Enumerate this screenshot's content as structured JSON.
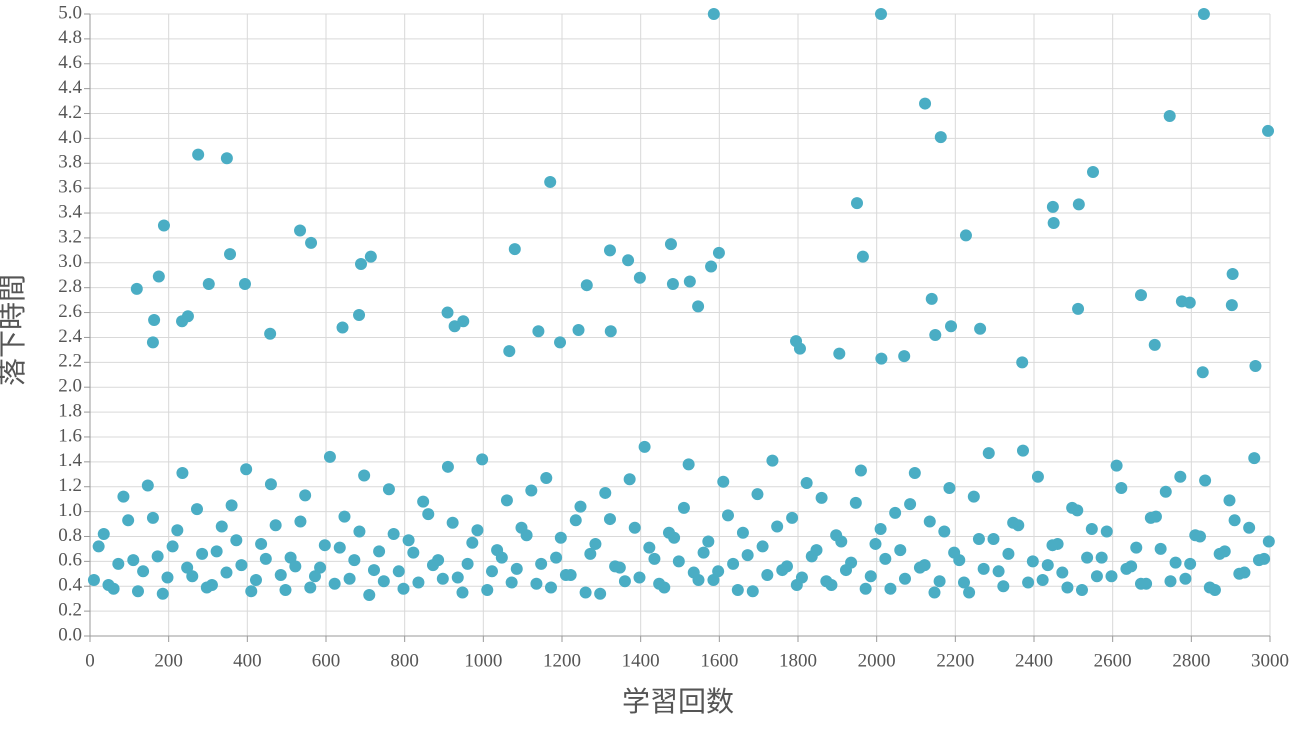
{
  "chart_data": {
    "type": "scatter",
    "x_label": "学習回数",
    "y_label": "落下時間",
    "color": "#4aadc4",
    "grid": true,
    "xlim": [
      0,
      3000
    ],
    "xticks": [
      0,
      200,
      400,
      600,
      800,
      1000,
      1200,
      1400,
      1600,
      1800,
      2000,
      2200,
      2400,
      2600,
      2800,
      3000
    ],
    "ylim": [
      0,
      5
    ],
    "yticks": [
      {
        "value": 0,
        "label": "0.0"
      },
      0.2,
      0.4,
      0.6,
      0.8,
      {
        "value": 1,
        "label": "1.0"
      },
      1.2,
      1.4,
      1.6,
      1.8,
      {
        "value": 2,
        "label": "2.0"
      },
      2.2,
      2.4,
      2.6,
      2.8,
      {
        "value": 3,
        "label": "3.0"
      },
      3.2,
      3.4,
      3.6,
      3.8,
      {
        "value": 4,
        "label": "4.0"
      },
      4.2,
      4.4,
      4.6,
      4.8,
      {
        "value": 5,
        "label": "5.0"
      }
    ],
    "x": [
      1586,
      2011,
      2832,
      2995,
      275,
      348,
      188,
      356,
      175,
      119,
      302,
      394,
      534,
      562,
      689,
      714,
      1080,
      1170,
      1322,
      1368,
      1398,
      1263,
      1477,
      1482,
      1525,
      1546,
      1579,
      1599,
      1950,
      1965,
      2123,
      2163,
      2140,
      2227,
      2448,
      2450,
      2514,
      2550,
      2512,
      2672,
      2707,
      2745,
      2776,
      2796,
      2905,
      2903,
      163,
      234,
      249,
      160,
      458,
      642,
      684,
      909,
      927,
      949,
      1066,
      1140,
      1242,
      1324,
      2149,
      2189,
      2263,
      2963,
      2829,
      1195,
      1795,
      1805,
      2012,
      1905,
      2070,
      2370,
      10,
      35,
      60,
      85,
      110,
      135,
      160,
      185,
      210,
      235,
      260,
      285,
      310,
      335,
      360,
      385,
      410,
      435,
      460,
      485,
      510,
      535,
      560,
      585,
      610,
      635,
      660,
      685,
      710,
      735,
      760,
      785,
      810,
      835,
      860,
      885,
      910,
      935,
      960,
      985,
      1010,
      1035,
      1060,
      1085,
      1110,
      1135,
      1160,
      1185,
      1210,
      1235,
      1260,
      1285,
      1310,
      1335,
      1360,
      1385,
      1410,
      1435,
      1460,
      1485,
      1510,
      1535,
      1560,
      1585,
      1610,
      1635,
      1660,
      1685,
      1710,
      1735,
      1760,
      1785,
      1810,
      1835,
      1860,
      1885,
      1910,
      1935,
      1960,
      1985,
      2010,
      2035,
      2060,
      2085,
      2110,
      2135,
      2160,
      2185,
      2210,
      2235,
      2260,
      2285,
      2310,
      2335,
      2360,
      2385,
      2410,
      2435,
      2460,
      2485,
      2510,
      2535,
      2560,
      2585,
      2610,
      2635,
      2660,
      2685,
      2710,
      2735,
      2760,
      2785,
      2810,
      2835,
      2860,
      2885,
      2910,
      2935,
      2960,
      2985,
      22,
      47,
      72,
      97,
      122,
      147,
      172,
      197,
      222,
      247,
      272,
      297,
      322,
      347,
      372,
      397,
      422,
      447,
      472,
      497,
      522,
      547,
      572,
      597,
      622,
      647,
      672,
      697,
      722,
      747,
      772,
      797,
      822,
      847,
      872,
      897,
      922,
      947,
      972,
      997,
      1022,
      1047,
      1072,
      1097,
      1122,
      1147,
      1172,
      1197,
      1222,
      1247,
      1272,
      1297,
      1322,
      1347,
      1372,
      1397,
      1422,
      1447,
      1472,
      1497,
      1522,
      1547,
      1572,
      1597,
      1622,
      1647,
      1672,
      1697,
      1722,
      1747,
      1772,
      1797,
      1822,
      1847,
      1872,
      1897,
      1922,
      1947,
      1972,
      1997,
      2022,
      2047,
      2072,
      2097,
      2122,
      2147,
      2172,
      2197,
      2222,
      2247,
      2272,
      2297,
      2322,
      2347,
      2372,
      2397,
      2422,
      2447,
      2472,
      2497,
      2522,
      2547,
      2572,
      2597,
      2622,
      2647,
      2672,
      2697,
      2722,
      2747,
      2772,
      2797,
      2822,
      2847,
      2872,
      2897,
      2922,
      2947,
      2972,
      2997
    ],
    "values": [
      5.0,
      5.0,
      5.0,
      4.06,
      3.87,
      3.84,
      3.3,
      3.07,
      2.89,
      2.79,
      2.83,
      2.83,
      3.26,
      3.16,
      2.99,
      3.05,
      3.11,
      3.65,
      3.1,
      3.02,
      2.88,
      2.82,
      3.15,
      2.83,
      2.85,
      2.65,
      2.97,
      3.08,
      3.48,
      3.05,
      4.28,
      4.01,
      2.71,
      3.22,
      3.45,
      3.32,
      3.47,
      3.73,
      2.63,
      2.74,
      2.34,
      4.18,
      2.69,
      2.68,
      2.91,
      2.66,
      2.54,
      2.53,
      2.57,
      2.36,
      2.43,
      2.48,
      2.58,
      2.6,
      2.49,
      2.53,
      2.29,
      2.45,
      2.46,
      2.45,
      2.42,
      2.49,
      2.47,
      2.17,
      2.12,
      2.36,
      2.37,
      2.31,
      2.23,
      2.27,
      2.25,
      2.2,
      0.45,
      0.82,
      0.38,
      1.12,
      0.61,
      0.52,
      0.95,
      0.34,
      0.72,
      1.31,
      0.48,
      0.66,
      0.41,
      0.88,
      1.05,
      0.57,
      0.36,
      0.74,
      1.22,
      0.49,
      0.63,
      0.92,
      0.39,
      0.55,
      1.44,
      0.71,
      0.46,
      0.84,
      0.33,
      0.68,
      1.18,
      0.52,
      0.77,
      0.43,
      0.98,
      0.61,
      1.36,
      0.47,
      0.58,
      0.85,
      0.37,
      0.69,
      1.09,
      0.54,
      0.81,
      0.42,
      1.27,
      0.63,
      0.49,
      0.93,
      0.35,
      0.74,
      1.15,
      0.56,
      0.44,
      0.87,
      1.52,
      0.62,
      0.39,
      0.79,
      1.03,
      0.51,
      0.67,
      0.45,
      1.24,
      0.58,
      0.83,
      0.36,
      0.72,
      1.41,
      0.53,
      0.95,
      0.47,
      0.64,
      1.11,
      0.41,
      0.76,
      0.59,
      1.33,
      0.48,
      0.86,
      0.38,
      0.69,
      1.06,
      0.55,
      0.92,
      0.44,
      1.19,
      0.61,
      0.35,
      0.78,
      1.47,
      0.52,
      0.66,
      0.89,
      0.43,
      1.28,
      0.57,
      0.74,
      0.39,
      1.01,
      0.63,
      0.48,
      0.84,
      1.37,
      0.54,
      0.71,
      0.42,
      0.96,
      1.16,
      0.59,
      0.46,
      0.81,
      1.25,
      0.37,
      0.68,
      0.93,
      0.51,
      1.43,
      0.62,
      0.72,
      0.41,
      0.58,
      0.93,
      0.36,
      1.21,
      0.64,
      0.47,
      0.85,
      0.55,
      1.02,
      0.39,
      0.68,
      0.51,
      0.77,
      1.34,
      0.45,
      0.62,
      0.89,
      0.37,
      0.56,
      1.13,
      0.48,
      0.73,
      0.42,
      0.96,
      0.61,
      1.29,
      0.53,
      0.44,
      0.82,
      0.38,
      0.67,
      1.08,
      0.57,
      0.46,
      0.91,
      0.35,
      0.75,
      1.42,
      0.52,
      0.63,
      0.43,
      0.87,
      1.17,
      0.58,
      0.39,
      0.79,
      0.49,
      1.04,
      0.66,
      0.34,
      0.94,
      0.55,
      1.26,
      0.47,
      0.71,
      0.42,
      0.83,
      0.6,
      1.38,
      0.45,
      0.76,
      0.52,
      0.97,
      0.37,
      0.65,
      1.14,
      0.49,
      0.88,
      0.56,
      0.41,
      1.23,
      0.69,
      0.44,
      0.81,
      0.53,
      1.07,
      0.38,
      0.74,
      0.62,
      0.99,
      0.46,
      1.31,
      0.57,
      0.35,
      0.84,
      0.67,
      0.43,
      1.12,
      0.54,
      0.78,
      0.4,
      0.91,
      1.49,
      0.6,
      0.45,
      0.73,
      0.51,
      1.03,
      0.37,
      0.86,
      0.63,
      0.48,
      1.19,
      0.56,
      0.42,
      0.95,
      0.7,
      0.44,
      1.28,
      0.58,
      0.8,
      0.39,
      0.66,
      1.09,
      0.5,
      0.87,
      0.61,
      0.76
    ]
  }
}
